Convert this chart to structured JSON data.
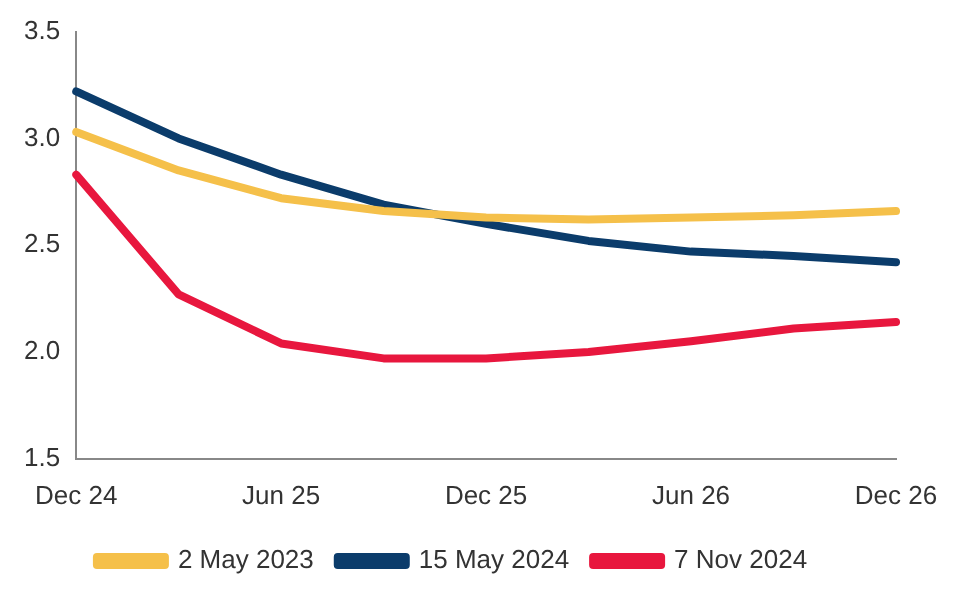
{
  "chart_data": {
    "type": "line",
    "categories": [
      "Dec 24",
      null,
      "Jun 25",
      null,
      "Dec 25",
      null,
      "Jun 26",
      null,
      "Dec 26"
    ],
    "series": [
      {
        "name": "2 May 2023",
        "color": "#f5c04a",
        "values": [
          3.03,
          2.85,
          2.72,
          2.66,
          2.63,
          2.62,
          2.63,
          2.64,
          2.66
        ]
      },
      {
        "name": "15 May 2024",
        "color": "#0b3c6b",
        "values": [
          3.22,
          3.0,
          2.83,
          2.69,
          2.6,
          2.52,
          2.47,
          2.45,
          2.42
        ]
      },
      {
        "name": "7 Nov 2024",
        "color": "#e8173e",
        "values": [
          2.83,
          2.27,
          2.04,
          1.97,
          1.97,
          2.0,
          2.05,
          2.11,
          2.14
        ]
      }
    ],
    "ylim": [
      1.5,
      3.5
    ],
    "yticks": [
      1.5,
      {
        "value": 2,
        "label": "2.0"
      },
      2.5,
      {
        "value": 3,
        "label": "3.0"
      },
      3.5
    ],
    "grid": false,
    "legend": "bottom",
    "marker": "none",
    "line_style": "solid"
  }
}
